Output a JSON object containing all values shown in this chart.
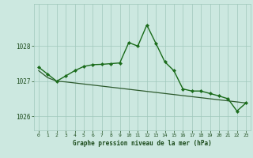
{
  "xlabel": "Graphe pression niveau de la mer (hPa)",
  "x": [
    0,
    1,
    2,
    3,
    4,
    5,
    6,
    7,
    8,
    9,
    10,
    11,
    12,
    13,
    14,
    15,
    16,
    17,
    18,
    19,
    20,
    21,
    22,
    23
  ],
  "y_main": [
    1027.4,
    1027.2,
    1027.0,
    1027.15,
    1027.3,
    1027.42,
    1027.47,
    1027.48,
    1027.5,
    1027.52,
    1028.1,
    1028.0,
    1028.6,
    1028.08,
    1027.55,
    1027.3,
    1026.78,
    1026.72,
    1026.72,
    1026.65,
    1026.58,
    1026.5,
    1026.15,
    1026.38
  ],
  "y_trend": [
    1027.3,
    1027.1,
    1027.0,
    1026.98,
    1026.95,
    1026.92,
    1026.89,
    1026.86,
    1026.83,
    1026.8,
    1026.77,
    1026.74,
    1026.71,
    1026.68,
    1026.65,
    1026.62,
    1026.59,
    1026.56,
    1026.53,
    1026.5,
    1026.47,
    1026.44,
    1026.41,
    1026.38
  ],
  "line_color": "#1a6b1a",
  "marker_color": "#1a6b1a",
  "trend_color": "#2d5a2d",
  "bg_color": "#cce8e0",
  "grid_color": "#a0c8bc",
  "text_color": "#1a4a1a",
  "ylim": [
    1025.6,
    1029.2
  ],
  "yticks": [
    1026,
    1027,
    1028
  ],
  "xticks": [
    0,
    1,
    2,
    3,
    4,
    5,
    6,
    7,
    8,
    9,
    10,
    11,
    12,
    13,
    14,
    15,
    16,
    17,
    18,
    19,
    20,
    21,
    22,
    23
  ]
}
